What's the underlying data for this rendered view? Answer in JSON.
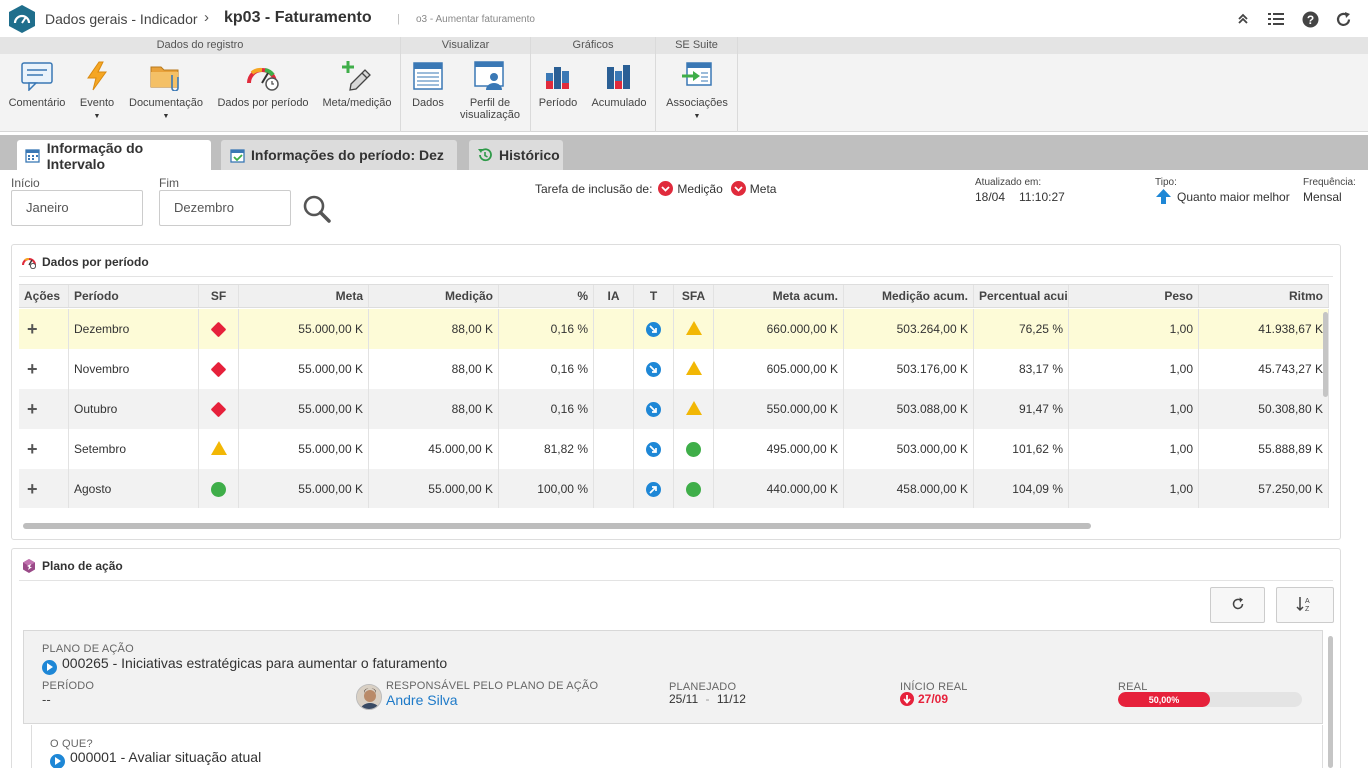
{
  "header": {
    "breadcrumb": "Dados gerais - Indicador",
    "title": "kp03 - Faturamento",
    "subtitle": "o3 - Aumentar faturamento"
  },
  "ribbon": {
    "groups": [
      {
        "title": "Dados do registro"
      },
      {
        "title": "Visualizar"
      },
      {
        "title": "Gráficos"
      },
      {
        "title": "SE Suite"
      }
    ],
    "buttons": {
      "comentario": "Comentário",
      "evento": "Evento",
      "documentacao": "Documentação",
      "dados_periodo": "Dados por período",
      "meta_medicao": "Meta/medição",
      "dados": "Dados",
      "perfil_l1": "Perfil de",
      "perfil_l2": "visualização",
      "periodo": "Período",
      "acumulado": "Acumulado",
      "associacoes": "Associações"
    }
  },
  "tabs": [
    {
      "label": "Informação do Intervalo",
      "active": true
    },
    {
      "label": "Informações do período: Dez",
      "active": false
    },
    {
      "label": "Histórico",
      "active": false
    }
  ],
  "filters": {
    "inicio_label": "Início",
    "inicio_value": "Janeiro",
    "fim_label": "Fim",
    "fim_value": "Dezembro",
    "tarefa_label": "Tarefa de inclusão de:",
    "tarefa_medicao": "Medição",
    "tarefa_meta": "Meta",
    "atualizado_label": "Atualizado em:",
    "atualizado_date": "18/04",
    "atualizado_time": "11:10:27",
    "tipo_label": "Tipo:",
    "tipo_value": "Quanto maior melhor",
    "frequencia_label": "Frequência:",
    "frequencia_value": "Mensal"
  },
  "dados_panel": {
    "title": "Dados por período",
    "columns": [
      "Ações",
      "Período",
      "SF",
      "Meta",
      "Medição",
      "%",
      "IA",
      "T",
      "SFA",
      "Meta acum.",
      "Medição acum.",
      "Percentual acui",
      "Peso",
      "Ritmo"
    ],
    "rows": [
      {
        "periodo": "Dezembro",
        "sf": "red-diamond",
        "meta": "55.000,00 K",
        "medicao": "88,00 K",
        "pct": "0,16 %",
        "ia": "",
        "t": "down-right",
        "sfa": "yellow-triangle",
        "meta_acum": "660.000,00 K",
        "medicao_acum": "503.264,00 K",
        "pct_acum": "76,25 %",
        "peso": "1,00",
        "ritmo": "41.938,67 K",
        "highlight": true
      },
      {
        "periodo": "Novembro",
        "sf": "red-diamond",
        "meta": "55.000,00 K",
        "medicao": "88,00 K",
        "pct": "0,16 %",
        "ia": "",
        "t": "down-right",
        "sfa": "yellow-triangle",
        "meta_acum": "605.000,00 K",
        "medicao_acum": "503.176,00 K",
        "pct_acum": "83,17 %",
        "peso": "1,00",
        "ritmo": "45.743,27 K"
      },
      {
        "periodo": "Outubro",
        "sf": "red-diamond",
        "meta": "55.000,00 K",
        "medicao": "88,00 K",
        "pct": "0,16 %",
        "ia": "",
        "t": "down-right",
        "sfa": "yellow-triangle",
        "meta_acum": "550.000,00 K",
        "medicao_acum": "503.088,00 K",
        "pct_acum": "91,47 %",
        "peso": "1,00",
        "ritmo": "50.308,80 K"
      },
      {
        "periodo": "Setembro",
        "sf": "yellow-triangle",
        "meta": "55.000,00 K",
        "medicao": "45.000,00 K",
        "pct": "81,82 %",
        "ia": "",
        "t": "down-right",
        "sfa": "green-circle",
        "meta_acum": "495.000,00 K",
        "medicao_acum": "503.000,00 K",
        "pct_acum": "101,62 %",
        "peso": "1,00",
        "ritmo": "55.888,89 K"
      },
      {
        "periodo": "Agosto",
        "sf": "green-circle",
        "meta": "55.000,00 K",
        "medicao": "55.000,00 K",
        "pct": "100,00 %",
        "ia": "",
        "t": "up-right",
        "sfa": "green-circle",
        "meta_acum": "440.000,00 K",
        "medicao_acum": "458.000,00 K",
        "pct_acum": "104,09 %",
        "peso": "1,00",
        "ritmo": "57.250,00 K"
      }
    ]
  },
  "plano_panel": {
    "title": "Plano de ação",
    "plano_caption": "PLANO DE AÇÃO",
    "plano_name": "000265 - Iniciativas estratégicas para aumentar o faturamento",
    "periodo_caption": "PERÍODO",
    "periodo_value": "--",
    "responsavel_caption": "RESPONSÁVEL PELO PLANO DE AÇÃO",
    "responsavel_value": "Andre Silva",
    "planejado_caption": "PLANEJADO",
    "planejado_start": "25/11",
    "planejado_sep": "-",
    "planejado_end": "11/12",
    "inicio_real_caption": "INÍCIO REAL",
    "inicio_real_value": "27/09",
    "real_caption": "REAL",
    "real_progress": 0.5,
    "real_label": "50,00%",
    "oque_caption": "O QUE?",
    "oque_value": "000001 - Avaliar situação atual"
  },
  "colors": {
    "brand": "#1f6e8c",
    "red": "#e6213b",
    "green": "#3fae49",
    "yellow": "#f2b705",
    "blue": "#1e87d6",
    "highlight_row": "#fdfbd7"
  }
}
